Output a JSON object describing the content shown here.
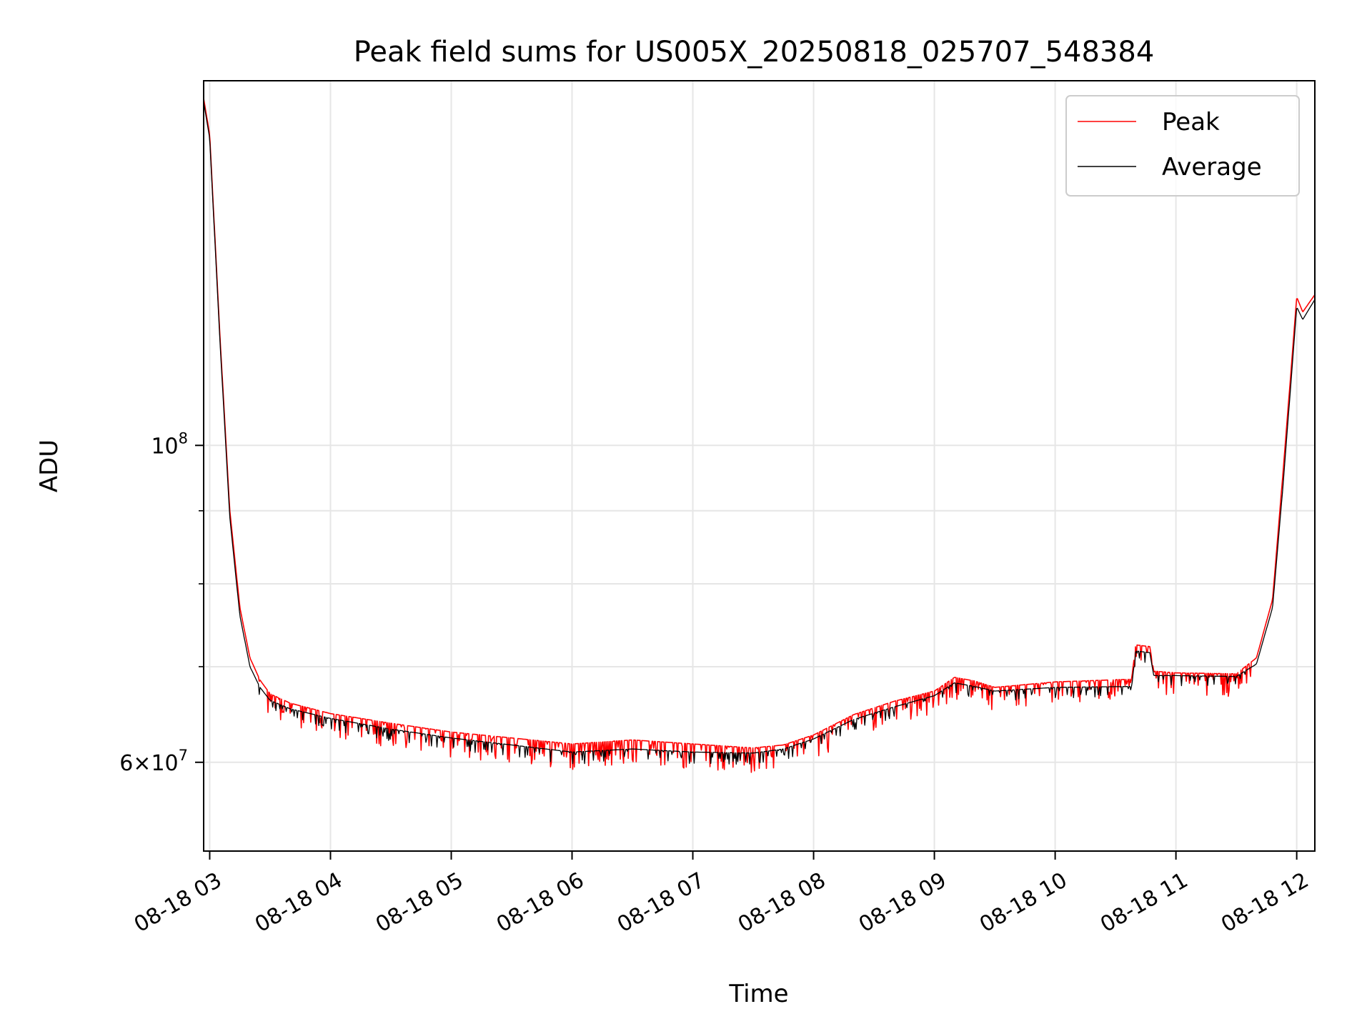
{
  "chart_data": {
    "type": "line",
    "title": "Peak field sums for US005X_20250818_025707_548384",
    "xlabel": "Time",
    "ylabel": "ADU",
    "yscale": "log",
    "ylim": [
      52000000,
      180000000
    ],
    "xlim": [
      "2025-08-18 02:57",
      "2025-08-18 12:09"
    ],
    "grid": true,
    "legend_position": "upper right",
    "x_ticks": [
      {
        "value": "2025-08-18 03:00",
        "label": "08-18 03"
      },
      {
        "value": "2025-08-18 04:00",
        "label": "08-18 04"
      },
      {
        "value": "2025-08-18 05:00",
        "label": "08-18 05"
      },
      {
        "value": "2025-08-18 06:00",
        "label": "08-18 06"
      },
      {
        "value": "2025-08-18 07:00",
        "label": "08-18 07"
      },
      {
        "value": "2025-08-18 08:00",
        "label": "08-18 08"
      },
      {
        "value": "2025-08-18 09:00",
        "label": "08-18 09"
      },
      {
        "value": "2025-08-18 10:00",
        "label": "08-18 10"
      },
      {
        "value": "2025-08-18 11:00",
        "label": "08-18 11"
      },
      {
        "value": "2025-08-18 12:00",
        "label": "08-18 12"
      }
    ],
    "y_major_ticks": [
      {
        "value": 60000000,
        "base": "6",
        "exp": "7"
      },
      {
        "value": 100000000,
        "base": "",
        "exp": "8"
      }
    ],
    "y_minor_gridlines": [
      70000000,
      80000000,
      90000000,
      200000000
    ],
    "series": [
      {
        "name": "Peak",
        "color": "#ff0000",
        "noise": {
          "down": 2500000,
          "density": 0.25
        },
        "points": [
          {
            "x": "2025-08-18 02:57",
            "y": 175000000
          },
          {
            "x": "2025-08-18 03:00",
            "y": 165000000
          },
          {
            "x": "2025-08-18 03:05",
            "y": 120000000
          },
          {
            "x": "2025-08-18 03:10",
            "y": 90000000
          },
          {
            "x": "2025-08-18 03:15",
            "y": 77000000
          },
          {
            "x": "2025-08-18 03:20",
            "y": 71000000
          },
          {
            "x": "2025-08-18 03:25",
            "y": 68500000
          },
          {
            "x": "2025-08-18 03:30",
            "y": 67000000
          },
          {
            "x": "2025-08-18 03:40",
            "y": 66000000
          },
          {
            "x": "2025-08-18 04:00",
            "y": 64900000
          },
          {
            "x": "2025-08-18 04:30",
            "y": 63900000
          },
          {
            "x": "2025-08-18 05:00",
            "y": 63000000
          },
          {
            "x": "2025-08-18 05:30",
            "y": 62400000
          },
          {
            "x": "2025-08-18 06:00",
            "y": 61800000
          },
          {
            "x": "2025-08-18 06:30",
            "y": 62200000
          },
          {
            "x": "2025-08-18 07:00",
            "y": 61800000
          },
          {
            "x": "2025-08-18 07:30",
            "y": 61400000
          },
          {
            "x": "2025-08-18 07:45",
            "y": 61700000
          },
          {
            "x": "2025-08-18 08:00",
            "y": 62700000
          },
          {
            "x": "2025-08-18 08:20",
            "y": 64800000
          },
          {
            "x": "2025-08-18 08:40",
            "y": 66200000
          },
          {
            "x": "2025-08-18 09:00",
            "y": 67300000
          },
          {
            "x": "2025-08-18 09:10",
            "y": 68800000
          },
          {
            "x": "2025-08-18 09:20",
            "y": 68400000
          },
          {
            "x": "2025-08-18 09:30",
            "y": 67700000
          },
          {
            "x": "2025-08-18 10:00",
            "y": 68300000
          },
          {
            "x": "2025-08-18 10:38",
            "y": 68600000
          },
          {
            "x": "2025-08-18 10:40",
            "y": 72500000
          },
          {
            "x": "2025-08-18 10:47",
            "y": 72300000
          },
          {
            "x": "2025-08-18 10:49",
            "y": 69500000
          },
          {
            "x": "2025-08-18 11:00",
            "y": 69300000
          },
          {
            "x": "2025-08-18 11:30",
            "y": 69200000
          },
          {
            "x": "2025-08-18 11:40",
            "y": 71000000
          },
          {
            "x": "2025-08-18 11:48",
            "y": 78000000
          },
          {
            "x": "2025-08-18 11:53",
            "y": 95000000
          },
          {
            "x": "2025-08-18 11:57",
            "y": 112000000
          },
          {
            "x": "2025-08-18 12:00",
            "y": 127000000
          },
          {
            "x": "2025-08-18 12:03",
            "y": 124000000
          },
          {
            "x": "2025-08-18 12:09",
            "y": 127500000
          }
        ]
      },
      {
        "name": "Average",
        "color": "#000000",
        "noise": {
          "down": 1200000,
          "density": 0.15
        },
        "points": [
          {
            "x": "2025-08-18 02:57",
            "y": 174000000
          },
          {
            "x": "2025-08-18 03:00",
            "y": 164000000
          },
          {
            "x": "2025-08-18 03:05",
            "y": 119000000
          },
          {
            "x": "2025-08-18 03:10",
            "y": 89000000
          },
          {
            "x": "2025-08-18 03:15",
            "y": 76000000
          },
          {
            "x": "2025-08-18 03:20",
            "y": 70000000
          },
          {
            "x": "2025-08-18 03:25",
            "y": 67700000
          },
          {
            "x": "2025-08-18 03:30",
            "y": 66300000
          },
          {
            "x": "2025-08-18 03:40",
            "y": 65400000
          },
          {
            "x": "2025-08-18 04:00",
            "y": 64400000
          },
          {
            "x": "2025-08-18 04:30",
            "y": 63300000
          },
          {
            "x": "2025-08-18 05:00",
            "y": 62400000
          },
          {
            "x": "2025-08-18 05:30",
            "y": 61700000
          },
          {
            "x": "2025-08-18 06:00",
            "y": 61000000
          },
          {
            "x": "2025-08-18 06:30",
            "y": 61300000
          },
          {
            "x": "2025-08-18 07:00",
            "y": 61000000
          },
          {
            "x": "2025-08-18 07:30",
            "y": 60900000
          },
          {
            "x": "2025-08-18 07:45",
            "y": 61300000
          },
          {
            "x": "2025-08-18 08:00",
            "y": 62300000
          },
          {
            "x": "2025-08-18 08:20",
            "y": 64300000
          },
          {
            "x": "2025-08-18 08:40",
            "y": 65600000
          },
          {
            "x": "2025-08-18 09:00",
            "y": 66800000
          },
          {
            "x": "2025-08-18 09:10",
            "y": 68200000
          },
          {
            "x": "2025-08-18 09:20",
            "y": 67800000
          },
          {
            "x": "2025-08-18 09:30",
            "y": 67300000
          },
          {
            "x": "2025-08-18 10:00",
            "y": 67700000
          },
          {
            "x": "2025-08-18 10:38",
            "y": 67800000
          },
          {
            "x": "2025-08-18 10:40",
            "y": 71800000
          },
          {
            "x": "2025-08-18 10:47",
            "y": 71600000
          },
          {
            "x": "2025-08-18 10:49",
            "y": 69000000
          },
          {
            "x": "2025-08-18 11:00",
            "y": 69000000
          },
          {
            "x": "2025-08-18 11:30",
            "y": 68900000
          },
          {
            "x": "2025-08-18 11:40",
            "y": 70300000
          },
          {
            "x": "2025-08-18 11:48",
            "y": 77000000
          },
          {
            "x": "2025-08-18 11:53",
            "y": 93000000
          },
          {
            "x": "2025-08-18 11:57",
            "y": 110000000
          },
          {
            "x": "2025-08-18 12:00",
            "y": 125000000
          },
          {
            "x": "2025-08-18 12:03",
            "y": 122500000
          },
          {
            "x": "2025-08-18 12:09",
            "y": 126500000
          }
        ]
      }
    ]
  }
}
